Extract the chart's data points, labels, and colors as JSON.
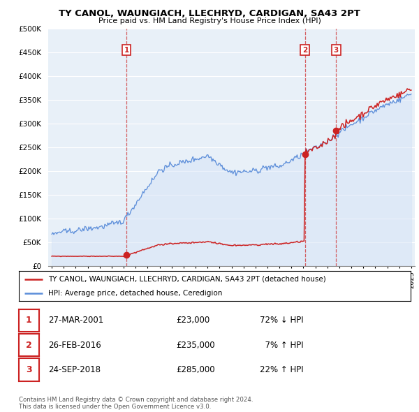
{
  "title": "TY CANOL, WAUNGIACH, LLECHRYD, CARDIGAN, SA43 2PT",
  "subtitle": "Price paid vs. HM Land Registry's House Price Index (HPI)",
  "ylim": [
    0,
    500000
  ],
  "yticks": [
    0,
    50000,
    100000,
    150000,
    200000,
    250000,
    300000,
    350000,
    400000,
    450000,
    500000
  ],
  "ytick_labels": [
    "£0",
    "£50K",
    "£100K",
    "£150K",
    "£200K",
    "£250K",
    "£300K",
    "£350K",
    "£400K",
    "£450K",
    "£500K"
  ],
  "hpi_color": "#5b8dd9",
  "hpi_fill": "#d6e4f7",
  "price_color": "#cc2222",
  "dashed_color": "#cc2222",
  "transactions": [
    {
      "date_num": 2001.23,
      "price": 23000,
      "label": "1"
    },
    {
      "date_num": 2016.12,
      "price": 235000,
      "label": "2"
    },
    {
      "date_num": 2018.73,
      "price": 285000,
      "label": "3"
    }
  ],
  "legend_entries": [
    {
      "label": "TY CANOL, WAUNGIACH, LLECHRYD, CARDIGAN, SA43 2PT (detached house)",
      "color": "#cc2222"
    },
    {
      "label": "HPI: Average price, detached house, Ceredigion",
      "color": "#5b8dd9"
    }
  ],
  "table_rows": [
    {
      "num": "1",
      "date": "27-MAR-2001",
      "price": "£23,000",
      "hpi": "72% ↓ HPI"
    },
    {
      "num": "2",
      "date": "26-FEB-2016",
      "price": "£235,000",
      "hpi": "  7% ↑ HPI"
    },
    {
      "num": "3",
      "date": "24-SEP-2018",
      "price": "£285,000",
      "hpi": "22% ↑ HPI"
    }
  ],
  "footer": "Contains HM Land Registry data © Crown copyright and database right 2024.\nThis data is licensed under the Open Government Licence v3.0.",
  "background_color": "#ffffff",
  "chart_bg": "#e8f0f8",
  "grid_color": "#ffffff"
}
